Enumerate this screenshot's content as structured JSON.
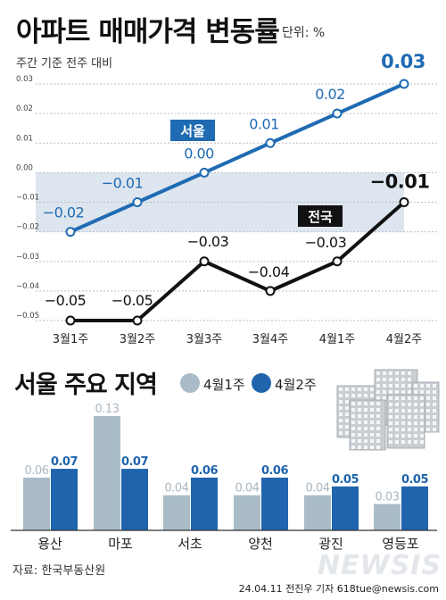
{
  "header": {
    "title": "아파트 매매가격 변동률",
    "unit": "단위: %",
    "subtitle": "주간 기준 전주 대비"
  },
  "chart_data": [
    {
      "type": "line",
      "categories": [
        "3월1주",
        "3월2주",
        "3월3주",
        "3월4주",
        "4월1주",
        "4월2주"
      ],
      "series": [
        {
          "name": "서울",
          "color": "#1f6bb3",
          "values": [
            -0.02,
            -0.01,
            0.0,
            0.01,
            0.02,
            0.03
          ],
          "labels": [
            "-0.02",
            "-0.01",
            "0.00",
            "0.01",
            "0.02",
            "0.03"
          ]
        },
        {
          "name": "전국",
          "color": "#111111",
          "values": [
            -0.05,
            -0.05,
            -0.03,
            -0.04,
            -0.03,
            -0.01
          ],
          "labels": [
            "-0.05",
            "-0.05",
            "-0.03",
            "-0.04",
            "-0.03",
            "-0.01"
          ]
        }
      ],
      "ylim": [
        -0.05,
        0.03
      ],
      "yticks": [
        "0.03",
        "0.02",
        "0.01",
        "0.00",
        "-0.01",
        "-0.02",
        "-0.03",
        "-0.04",
        "-0.05"
      ],
      "grid": true
    },
    {
      "type": "bar",
      "title": "서울 주요 지역",
      "categories": [
        "용산",
        "마포",
        "서초",
        "양천",
        "광진",
        "영등포"
      ],
      "series": [
        {
          "name": "4월1주",
          "color": "#a9bcc8",
          "values": [
            0.06,
            0.13,
            0.04,
            0.04,
            0.04,
            0.03
          ],
          "labels": [
            "0.06",
            "0.13",
            "0.04",
            "0.04",
            "0.04",
            "0.03"
          ]
        },
        {
          "name": "4월2주",
          "color": "#1f64ad",
          "values": [
            0.07,
            0.07,
            0.06,
            0.06,
            0.05,
            0.05
          ],
          "labels": [
            "0.07",
            "0.07",
            "0.06",
            "0.06",
            "0.05",
            "0.05"
          ]
        }
      ],
      "ylim": [
        0,
        0.13
      ]
    }
  ],
  "footer": {
    "source": "자료: 한국부동산원",
    "credit": "24.04.11 전진우 기자 618tue@newsis.com",
    "watermark": "NEWSIS"
  }
}
